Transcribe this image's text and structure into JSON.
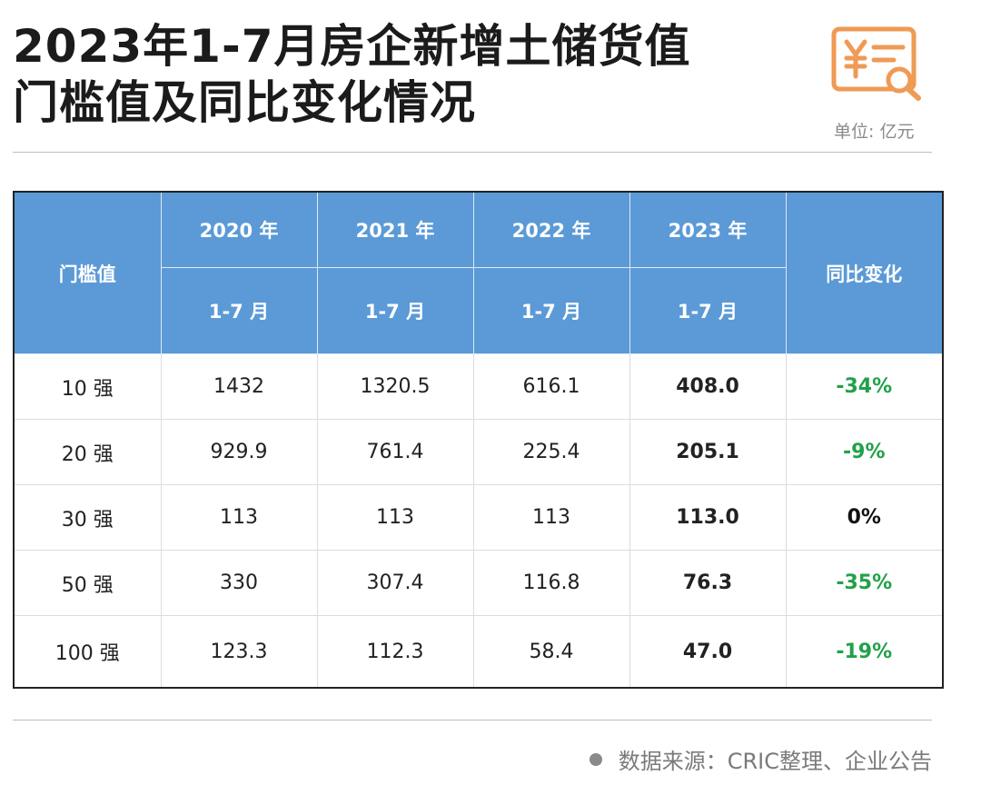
{
  "title_line1": "2023年1-7月房企新增土储货值",
  "title_line2": "门槛值及同比变化情况",
  "unit": "单位: 亿元",
  "logo_icon": "yuan-document-search-icon",
  "accent_color": "#5b9ad6",
  "table": {
    "row_header": "门槛值",
    "years": [
      "2020 年",
      "2021 年",
      "2022 年",
      "2023 年"
    ],
    "period": "1-7 月",
    "yoy_header": "同比变化",
    "rows": [
      {
        "label": "10 强",
        "v2020": "1432",
        "v2021": "1320.5",
        "v2022": "616.1",
        "v2023": "408.0",
        "yoy": "-34%"
      },
      {
        "label": "20 强",
        "v2020": "929.9",
        "v2021": "761.4",
        "v2022": "225.4",
        "v2023": "205.1",
        "yoy": "-9%"
      },
      {
        "label": "30 强",
        "v2020": "113",
        "v2021": "113",
        "v2022": "113",
        "v2023": "113.0",
        "yoy": "0%"
      },
      {
        "label": "50 强",
        "v2020": "330",
        "v2021": "307.4",
        "v2022": "116.8",
        "v2023": "76.3",
        "yoy": "-35%"
      },
      {
        "label": "100 强",
        "v2020": "123.3",
        "v2021": "112.3",
        "v2022": "58.4",
        "v2023": "47.0",
        "yoy": "-19%"
      }
    ]
  },
  "source": "数据来源：CRIC整理、企业公告"
}
